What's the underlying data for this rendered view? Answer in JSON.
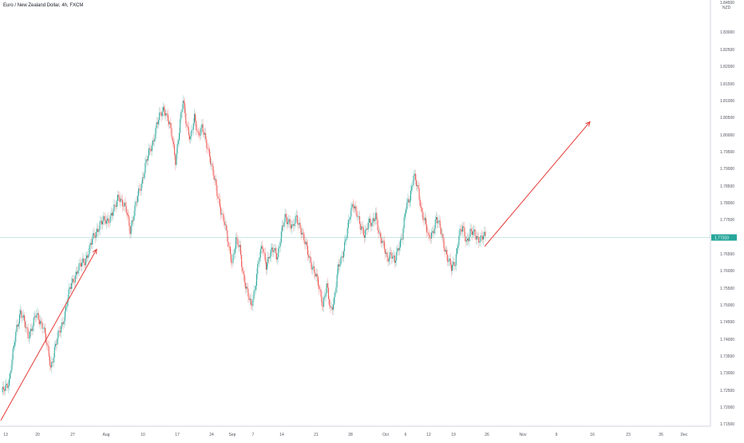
{
  "title": "Euro / New Zealand Dollar, 4h, FXCM",
  "chart_data": {
    "type": "candlestick",
    "title": "Euro / New Zealand Dollar, 4h, FXCM",
    "y_unit": "NZD",
    "ylim": [
      1.708,
      1.855
    ],
    "y_ticks": [
      "1.84500",
      "1.83000",
      "1.82500",
      "1.82000",
      "1.81500",
      "1.81000",
      "1.80500",
      "1.80000",
      "1.79500",
      "1.79000",
      "1.78500",
      "1.78000",
      "1.77500",
      "1.77000",
      "1.76500",
      "1.76000",
      "1.75500",
      "1.75000",
      "1.74500",
      "1.74000",
      "1.73500",
      "1.73000",
      "1.72500",
      "1.72000",
      "1.71500",
      "1.71000"
    ],
    "x_ticks": [
      "13",
      "20",
      "27",
      "Aug",
      "10",
      "17",
      "24",
      "Sep",
      "7",
      "14",
      "21",
      "28",
      "Oct",
      "6",
      "12",
      "19",
      "26",
      "Nov",
      "9",
      "16",
      "23",
      "26",
      "Dec"
    ],
    "current_price": "1.77310",
    "up_color": "#26a69a",
    "down_color": "#ef5350",
    "price_line_color": "#26a69a",
    "arrow_color": "#e53935",
    "grid": false,
    "anchors": [
      [
        0,
        1.719
      ],
      [
        2,
        1.724
      ],
      [
        4,
        1.742
      ],
      [
        5,
        1.748
      ],
      [
        7,
        1.739
      ],
      [
        9,
        1.746
      ],
      [
        11,
        1.743
      ],
      [
        13,
        1.728
      ],
      [
        14,
        1.735
      ],
      [
        16,
        1.743
      ],
      [
        18,
        1.755
      ],
      [
        20,
        1.762
      ],
      [
        22,
        1.765
      ],
      [
        24,
        1.772
      ],
      [
        26,
        1.778
      ],
      [
        28,
        1.779
      ],
      [
        30,
        1.783
      ],
      [
        31,
        1.788
      ],
      [
        33,
        1.782
      ],
      [
        34,
        1.776
      ],
      [
        36,
        1.787
      ],
      [
        37,
        1.792
      ],
      [
        38,
        1.798
      ],
      [
        39,
        1.802
      ],
      [
        40,
        1.806
      ],
      [
        41,
        1.812
      ],
      [
        42,
        1.815
      ],
      [
        43,
        1.818
      ],
      [
        44,
        1.814
      ],
      [
        45,
        1.808
      ],
      [
        46,
        1.8
      ],
      [
        47,
        1.81
      ],
      [
        48,
        1.82
      ],
      [
        49,
        1.812
      ],
      [
        50,
        1.807
      ],
      [
        51,
        1.814
      ],
      [
        52,
        1.809
      ],
      [
        53,
        1.811
      ],
      [
        54,
        1.806
      ],
      [
        55,
        1.802
      ],
      [
        56,
        1.795
      ],
      [
        57,
        1.788
      ],
      [
        58,
        1.783
      ],
      [
        59,
        1.778
      ],
      [
        60,
        1.77
      ],
      [
        61,
        1.765
      ],
      [
        62,
        1.772
      ],
      [
        63,
        1.769
      ],
      [
        64,
        1.76
      ],
      [
        65,
        1.754
      ],
      [
        66,
        1.749
      ],
      [
        67,
        1.756
      ],
      [
        68,
        1.765
      ],
      [
        69,
        1.77
      ],
      [
        70,
        1.764
      ],
      [
        71,
        1.767
      ],
      [
        72,
        1.769
      ],
      [
        73,
        1.767
      ],
      [
        74,
        1.774
      ],
      [
        75,
        1.78
      ],
      [
        76,
        1.779
      ],
      [
        77,
        1.776
      ],
      [
        78,
        1.78
      ],
      [
        79,
        1.777
      ],
      [
        80,
        1.772
      ],
      [
        81,
        1.768
      ],
      [
        82,
        1.764
      ],
      [
        83,
        1.76
      ],
      [
        84,
        1.756
      ],
      [
        85,
        1.75
      ],
      [
        86,
        1.756
      ],
      [
        87,
        1.748
      ],
      [
        88,
        1.752
      ],
      [
        89,
        1.762
      ],
      [
        90,
        1.766
      ],
      [
        91,
        1.773
      ],
      [
        92,
        1.779
      ],
      [
        93,
        1.785
      ],
      [
        94,
        1.782
      ],
      [
        95,
        1.776
      ],
      [
        96,
        1.774
      ],
      [
        97,
        1.779
      ],
      [
        98,
        1.777
      ],
      [
        99,
        1.781
      ],
      [
        100,
        1.774
      ],
      [
        101,
        1.77
      ],
      [
        102,
        1.766
      ],
      [
        103,
        1.768
      ],
      [
        104,
        1.764
      ],
      [
        105,
        1.77
      ],
      [
        106,
        1.774
      ],
      [
        107,
        1.783
      ],
      [
        108,
        1.787
      ],
      [
        109,
        1.795
      ],
      [
        110,
        1.79
      ],
      [
        111,
        1.783
      ],
      [
        112,
        1.779
      ],
      [
        113,
        1.772
      ],
      [
        114,
        1.775
      ],
      [
        115,
        1.78
      ],
      [
        116,
        1.776
      ],
      [
        117,
        1.771
      ],
      [
        118,
        1.766
      ],
      [
        119,
        1.762
      ],
      [
        120,
        1.765
      ],
      [
        121,
        1.774
      ],
      [
        122,
        1.776
      ],
      [
        123,
        1.772
      ],
      [
        124,
        1.775
      ],
      [
        125,
        1.774
      ],
      [
        126,
        1.773
      ],
      [
        127,
        1.7731
      ]
    ],
    "arrows": [
      {
        "from": [
          "2020-07-12",
          1.71
        ],
        "to": [
          "2020-08-01",
          1.769
        ]
      },
      {
        "from": [
          "2020-10-21",
          1.77
        ],
        "to": [
          "2020-11-12",
          1.813
        ]
      }
    ]
  }
}
